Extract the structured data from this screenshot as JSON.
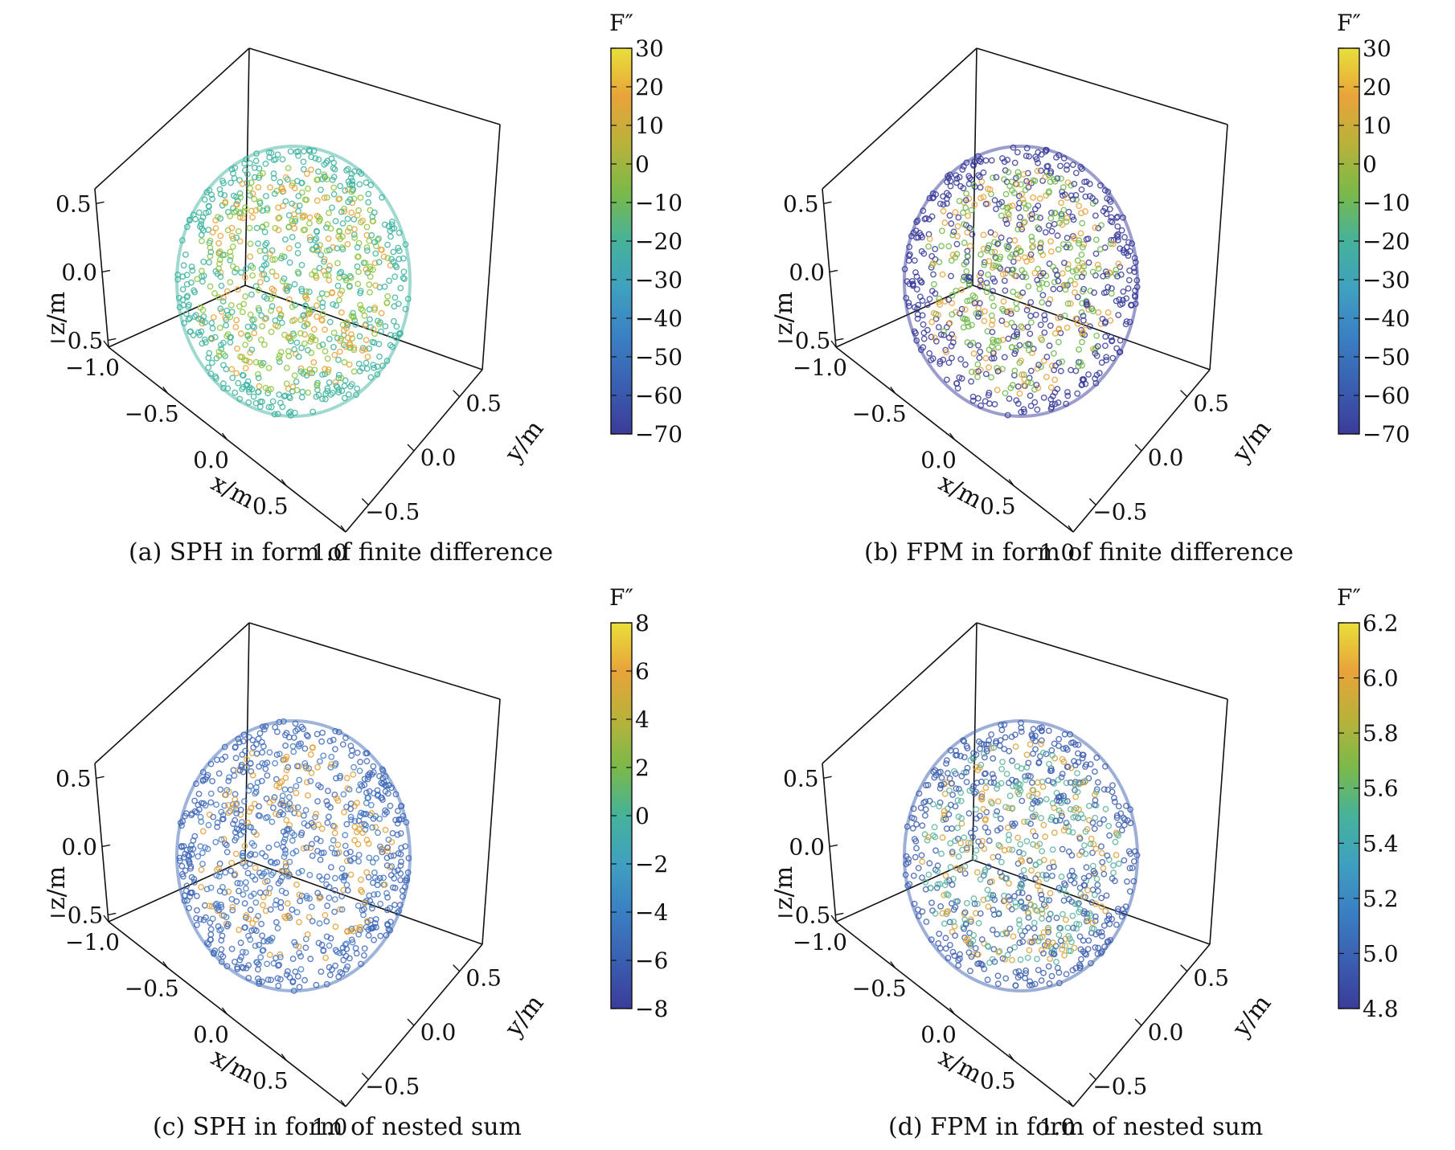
{
  "chart_data": [
    {
      "type": "scatter",
      "subtype": "scatter3d",
      "caption": "(a) SPH in form of finite difference",
      "xlabel": "x/m",
      "ylabel": "y/m",
      "zlabel": "z/m",
      "xlim": [
        -1.0,
        1.0
      ],
      "ylim": [
        -0.5,
        0.5
      ],
      "zlim": [
        -0.5,
        0.5
      ],
      "x_ticks": [
        "−1.0",
        "−0.5",
        "0.0",
        "0.5",
        "1.0"
      ],
      "y_ticks": [
        "−0.5",
        "0.0",
        "0.5"
      ],
      "z_ticks": [
        "−0.5",
        "0.0",
        "0.5"
      ],
      "colorbar_label": "F″",
      "colorbar_range": [
        -70,
        30
      ],
      "colorbar_ticks": [
        "30",
        "20",
        "10",
        "0",
        "−10",
        "−20",
        "−30",
        "−40",
        "−50",
        "−60",
        "−70"
      ],
      "colormap": "viridis",
      "colors": {
        "edge": "#3fb4a0",
        "center": "#8ec63f",
        "accent": "#e8a33a"
      },
      "grid": false
    },
    {
      "type": "scatter",
      "subtype": "scatter3d",
      "caption": "(b) FPM in form of finite difference",
      "xlabel": "x/m",
      "ylabel": "y/m",
      "zlabel": "z/m",
      "xlim": [
        -1.0,
        1.0
      ],
      "ylim": [
        -0.5,
        0.5
      ],
      "zlim": [
        -0.5,
        0.5
      ],
      "x_ticks": [
        "−1.0",
        "−0.5",
        "0.0",
        "0.5",
        "1.0"
      ],
      "y_ticks": [
        "−0.5",
        "0.0",
        "0.5"
      ],
      "z_ticks": [
        "−0.5",
        "0.0",
        "0.5"
      ],
      "colorbar_label": "F″",
      "colorbar_range": [
        -70,
        30
      ],
      "colorbar_ticks": [
        "30",
        "20",
        "10",
        "0",
        "−10",
        "−20",
        "−30",
        "−40",
        "−50",
        "−60",
        "−70"
      ],
      "colormap": "viridis",
      "colors": {
        "edge": "#3a3c9a",
        "center": "#6fb84a",
        "accent": "#e8a33a"
      },
      "grid": false
    },
    {
      "type": "scatter",
      "subtype": "scatter3d",
      "caption": "(c) SPH in form of nested sum",
      "xlabel": "x/m",
      "ylabel": "y/m",
      "zlabel": "z/m",
      "xlim": [
        -1.0,
        1.0
      ],
      "ylim": [
        -0.5,
        0.5
      ],
      "zlim": [
        -0.5,
        0.5
      ],
      "x_ticks": [
        "−1.0",
        "−0.5",
        "0.0",
        "0.5",
        "1.0"
      ],
      "y_ticks": [
        "−0.5",
        "0.0",
        "0.5"
      ],
      "z_ticks": [
        "−0.5",
        "0.0",
        "0.5"
      ],
      "colorbar_label": "F″",
      "colorbar_range": [
        -8,
        8
      ],
      "colorbar_ticks": [
        "8",
        "6",
        "4",
        "2",
        "0",
        "−2",
        "−4",
        "−6",
        "−8"
      ],
      "colormap": "viridis",
      "colors": {
        "edge": "#3f69b8",
        "center": "#4a7ec4",
        "accent": "#e0a03a"
      },
      "grid": false
    },
    {
      "type": "scatter",
      "subtype": "scatter3d",
      "caption": "(d) FPM in form of nested sum",
      "xlabel": "x/m",
      "ylabel": "y/m",
      "zlabel": "z/m",
      "xlim": [
        -1.0,
        1.0
      ],
      "ylim": [
        -0.5,
        0.5
      ],
      "zlim": [
        -0.5,
        0.5
      ],
      "x_ticks": [
        "−1.0",
        "−0.5",
        "0.0",
        "0.5",
        "1.0"
      ],
      "y_ticks": [
        "−0.5",
        "0.0",
        "0.5"
      ],
      "z_ticks": [
        "−0.5",
        "0.0",
        "0.5"
      ],
      "colorbar_label": "F″",
      "colorbar_range": [
        4.8,
        6.2
      ],
      "colorbar_ticks": [
        "6.2",
        "6.0",
        "5.8",
        "5.6",
        "5.4",
        "5.2",
        "5.0",
        "4.8"
      ],
      "colormap": "viridis",
      "colors": {
        "edge": "#3e5fb0",
        "center": "#5cb3a0",
        "accent": "#d9a23a"
      },
      "grid": false
    }
  ]
}
